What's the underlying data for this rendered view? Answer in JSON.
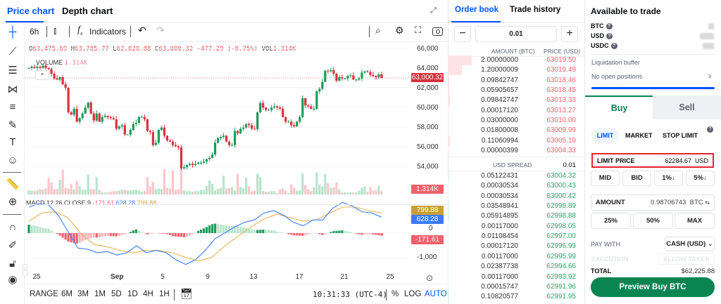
{
  "chart_tabs": [
    "Price chart",
    "Depth chart"
  ],
  "toolbar": {
    "interval": "6h",
    "indicators": "Indicators"
  },
  "ohlc": {
    "o_label": "O",
    "o": "63,475.69",
    "h_label": "H",
    "h": "63,785.77",
    "l_label": "L",
    "l": "62,820.88",
    "c_label": "C",
    "c": "63,000.32",
    "change": "-477.29 (-0.75%)",
    "vol_label": "VOL",
    "vol": "1.314K"
  },
  "volume_legend": {
    "label": "VOLUME",
    "value": "1.314K"
  },
  "macd_legend": {
    "label": "MACD 12 26 CLOSE 9",
    "hist": "-171.61",
    "macd": "628.28",
    "signal": "799.88"
  },
  "price_axis": [
    "66,000",
    "64,000",
    "62,000",
    "60,000",
    "58,000",
    "56,000",
    "54,000"
  ],
  "price_tag": "63,000.32",
  "volume_tag": "1.314K",
  "macd_axis": {
    "zero": "0",
    "neg": "-1,000"
  },
  "macd_tags": {
    "signal": "799.88",
    "macd": "628.28",
    "hist": "-171.61"
  },
  "date_labels": [
    "25",
    "Sep",
    "5",
    "9",
    "13",
    "17",
    "21",
    "25"
  ],
  "ranges": [
    "RANGE",
    "6M",
    "3M",
    "1M",
    "5D",
    "1D",
    "4H",
    "1H"
  ],
  "clock": "10:31:33 (UTC-4)",
  "scale_opts": {
    "pct": "%",
    "log": "LOG",
    "auto": "AUTO"
  },
  "colors": {
    "up": "#1e9a5a",
    "down": "#d9303e",
    "up_light": "#b7e4cb",
    "down_light": "#f8c6cb",
    "accent": "#0052ff",
    "buy": "#098551",
    "macd": "#3b7cf5",
    "signal": "#e2b45a"
  },
  "chart_data": {
    "type": "candlestick",
    "price_range": [
      53000,
      66500
    ],
    "closes": [
      64020,
      64140,
      64020,
      64140,
      64020,
      64260,
      64020,
      63910,
      63430,
      62950,
      62830,
      63070,
      62360,
      62000,
      59500,
      59260,
      59860,
      58550,
      58910,
      59380,
      59980,
      60500,
      59380,
      58670,
      59380,
      58550,
      59020,
      59140,
      59020,
      58910,
      58790,
      57830,
      58070,
      58190,
      57240,
      57240,
      57710,
      58310,
      58430,
      59020,
      59020,
      58790,
      57600,
      57480,
      56170,
      56410,
      57710,
      57950,
      57120,
      56640,
      56520,
      56170,
      56050,
      55930,
      53790,
      53910,
      54140,
      54260,
      54140,
      54260,
      54380,
      54380,
      54500,
      54740,
      54860,
      55210,
      56410,
      56880,
      57000,
      57120,
      56520,
      56170,
      56170,
      57600,
      57360,
      57830,
      57950,
      58310,
      58190,
      57830,
      57790,
      59500,
      60450,
      59980,
      59740,
      59740,
      59980,
      60100,
      59980,
      59860,
      59020,
      58550,
      58550,
      58190,
      58070,
      58550,
      59020,
      60930,
      60210,
      60100,
      59860,
      59860,
      61640,
      61880,
      62600,
      63740,
      63670,
      63790,
      63430,
      62710,
      63070,
      62950,
      62950,
      63190,
      63260,
      62830,
      62830,
      62950,
      63550,
      63670,
      63600,
      63310,
      63190,
      63070,
      63360,
      63000
    ],
    "volumes_k": [
      0.6,
      0.6,
      0.5,
      0.6,
      0.8,
      0.7,
      0.9,
      2.5,
      1.8,
      0.8,
      0.8,
      2.2,
      3.7,
      1.0,
      0.9,
      1.6,
      0.8,
      2.0,
      1.3,
      0.7,
      0.7,
      3.0,
      0.8,
      0.8,
      2.6,
      0.7,
      0.3,
      0.3,
      0.3,
      0.4,
      0.5,
      0.5,
      0.6,
      0.7,
      0.7,
      0.6,
      0.6,
      0.7,
      0.7,
      0.6,
      0.4,
      0.5,
      2.6,
      1.2,
      1.9,
      0.8,
      0.9,
      0.8,
      3.8,
      1.0,
      0.9,
      3.6,
      0.7,
      0.8,
      3.8,
      0.6,
      0.5,
      0.5,
      0.4,
      0.5,
      0.5,
      0.7,
      0.7,
      1.3,
      2.1,
      1.6,
      0.6,
      0.9,
      1.0,
      2.8,
      0.9,
      1.0,
      1.1,
      0.6,
      3.1,
      1.1,
      0.9,
      2.5,
      1.2,
      0.5,
      0.6,
      3.1,
      2.6,
      0.5,
      0.4,
      0.4,
      0.5,
      0.5,
      0.2,
      0.8,
      0.9,
      0.6,
      0.2,
      1.5,
      1.0,
      0.6,
      0.6,
      3.2,
      1.4,
      0.8,
      0.5,
      1.1,
      3.3,
      1.5,
      1.2,
      3.1,
      1.7,
      1.0,
      1.1,
      1.8,
      0.8,
      0.3,
      0.3,
      0.3,
      0.3,
      0.3,
      0.3,
      0.6,
      1.0,
      1.2,
      0.4,
      1.1,
      0.6,
      0.6,
      1.314
    ],
    "macd": [
      1028,
      1167,
      1120,
      703,
      55,
      -593,
      -639,
      -778,
      -731,
      -870,
      -778,
      -500,
      -778,
      -685,
      -778,
      -1056,
      -1241,
      -1056,
      -685,
      -222,
      9,
      241,
      426,
      519,
      796,
      889,
      704,
      426,
      287,
      519,
      519,
      981,
      1213,
      1074,
      843,
      796,
      628
    ],
    "signal": [
      472,
      796,
      843,
      611,
      -37,
      -454,
      -546,
      -685,
      -778,
      -685,
      -685,
      -778,
      -963,
      -1102,
      -963,
      -500,
      -130,
      241,
      565,
      750,
      611,
      472,
      519,
      796,
      1028,
      1028,
      889,
      800
    ],
    "macd_range": [
      -1400,
      1400
    ]
  },
  "orderbook": {
    "tabs": [
      "Order book",
      "Trade history"
    ],
    "step": "0.01",
    "minus": "−",
    "plus": "+",
    "headers": [
      "AMOUNT (BTC)",
      "PRICE (USD)"
    ],
    "asks": [
      [
        "2.00000000",
        "63019.50"
      ],
      [
        "1.20000009",
        "63019.49"
      ],
      [
        "0.09842747",
        "63018.46"
      ],
      [
        "0.05905657",
        "63018.45"
      ],
      [
        "0.09842747",
        "63013.33"
      ],
      [
        "0.00017120",
        "63013.27"
      ],
      [
        "0.03000000",
        "63010.00"
      ],
      [
        "0.01800008",
        "63009.99"
      ],
      [
        "0.11060994",
        "63005.19"
      ],
      [
        "0.00000399",
        "63004.33"
      ]
    ],
    "spread_label": "USD SPREAD",
    "spread": "0.01",
    "bids": [
      [
        "0.05122431",
        "63004.32"
      ],
      [
        "0.00030534",
        "63000.43"
      ],
      [
        "0.00030534",
        "63000.42"
      ],
      [
        "0.03548941",
        "62998.89"
      ],
      [
        "0.05914895",
        "62998.88"
      ],
      [
        "0.00117000",
        "62998.05"
      ],
      [
        "0.01108454",
        "62997.00"
      ],
      [
        "0.00017120",
        "62996.99"
      ],
      [
        "0.00117000",
        "62995.99"
      ],
      [
        "0.02387738",
        "62994.66"
      ],
      [
        "0.00117000",
        "62993.92"
      ],
      [
        "0.00015747",
        "62991.96"
      ],
      [
        "0.10820577",
        "62991.95"
      ]
    ]
  },
  "trade": {
    "available_title": "Available to trade",
    "assets": [
      "BTC",
      "USD",
      "USDC"
    ],
    "liq_label": "Liquidation buffer",
    "positions": "No open positions",
    "buy": "Buy",
    "sell": "Sell",
    "order_types": [
      "LIMIT",
      "MARKET",
      "STOP LIMIT"
    ],
    "limit_label": "LIMIT PRICE",
    "limit_value": "62284.67",
    "limit_unit": "USD",
    "quick": [
      "MID",
      "BID",
      "1%↓",
      "5%↓"
    ],
    "amount_label": "AMOUNT",
    "amount_value": "0.98706743",
    "amount_unit": "BTC",
    "pct": [
      "25%",
      "50%",
      "MAX"
    ],
    "pay_label": "PAY WITH",
    "pay_value": "CASH (USD)",
    "exec_label": "EXECUTION",
    "exec_value": "ALLOW TAKER",
    "total_label": "TOTAL",
    "total_value": "$62,225.88",
    "preview": "Preview Buy BTC"
  }
}
